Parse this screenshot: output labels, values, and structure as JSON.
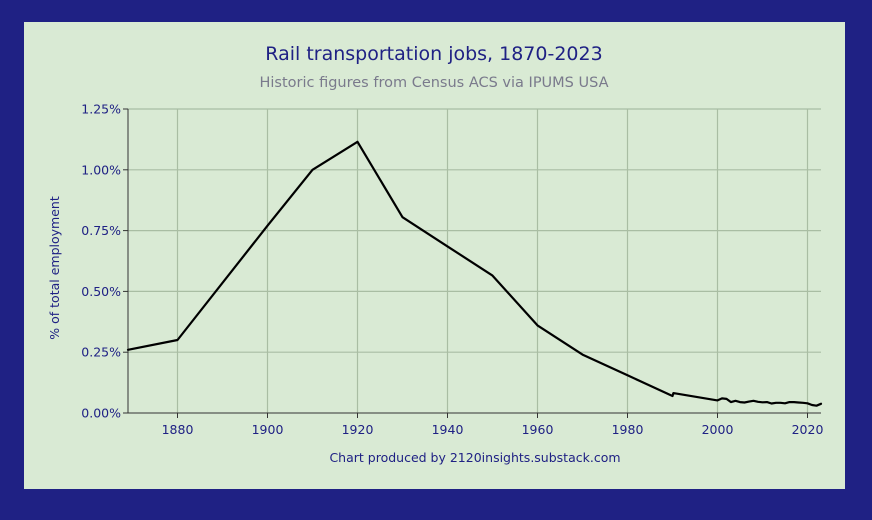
{
  "colors": {
    "frame": "#1f2184",
    "panel": "#d9ead4",
    "line": "#000000",
    "grid": "#a9bda3",
    "text": "#1f2184",
    "subtitle": "#7a7a8c"
  },
  "chart_data": {
    "type": "line",
    "title": "Rail transportation jobs, 1870-2023",
    "subtitle": "Historic figures from Census ACS via IPUMS USA",
    "ylabel": "% of total employment",
    "xlabel": "",
    "credit": "Chart produced by 2120insights.substack.com",
    "xlim": [
      1869,
      2023
    ],
    "ylim": [
      0,
      1.25
    ],
    "x_ticks": [
      1880,
      1900,
      1920,
      1940,
      1960,
      1980,
      2000,
      2020
    ],
    "x_tick_labels": [
      "1880",
      "1900",
      "1920",
      "1940",
      "1960",
      "1980",
      "2000",
      "2020"
    ],
    "y_ticks": [
      0,
      0.25,
      0.5,
      0.75,
      1.0,
      1.25
    ],
    "y_tick_labels": [
      "0.00%",
      "0.25%",
      "0.50%",
      "0.75%",
      "1.00%",
      "1.25%"
    ],
    "grid": true,
    "legend": false,
    "series": [
      {
        "x": [
          1869,
          1880,
          1900,
          1910,
          1920,
          1930,
          1940,
          1950,
          1960,
          1970,
          1980,
          1990,
          1990.2,
          2000,
          2001,
          2002,
          2003,
          2004,
          2005,
          2006,
          2007,
          2008,
          2009,
          2010,
          2011,
          2012,
          2013,
          2014,
          2015,
          2016,
          2017,
          2018,
          2019,
          2020,
          2021,
          2022,
          2023
        ],
        "y": [
          0.26,
          0.3,
          0.77,
          1.0,
          1.115,
          0.805,
          0.685,
          0.565,
          0.36,
          0.24,
          0.155,
          0.07,
          0.082,
          0.052,
          0.06,
          0.058,
          0.045,
          0.05,
          0.045,
          0.043,
          0.047,
          0.05,
          0.046,
          0.044,
          0.045,
          0.039,
          0.042,
          0.042,
          0.04,
          0.045,
          0.045,
          0.043,
          0.042,
          0.04,
          0.033,
          0.03,
          0.038
        ]
      }
    ]
  }
}
